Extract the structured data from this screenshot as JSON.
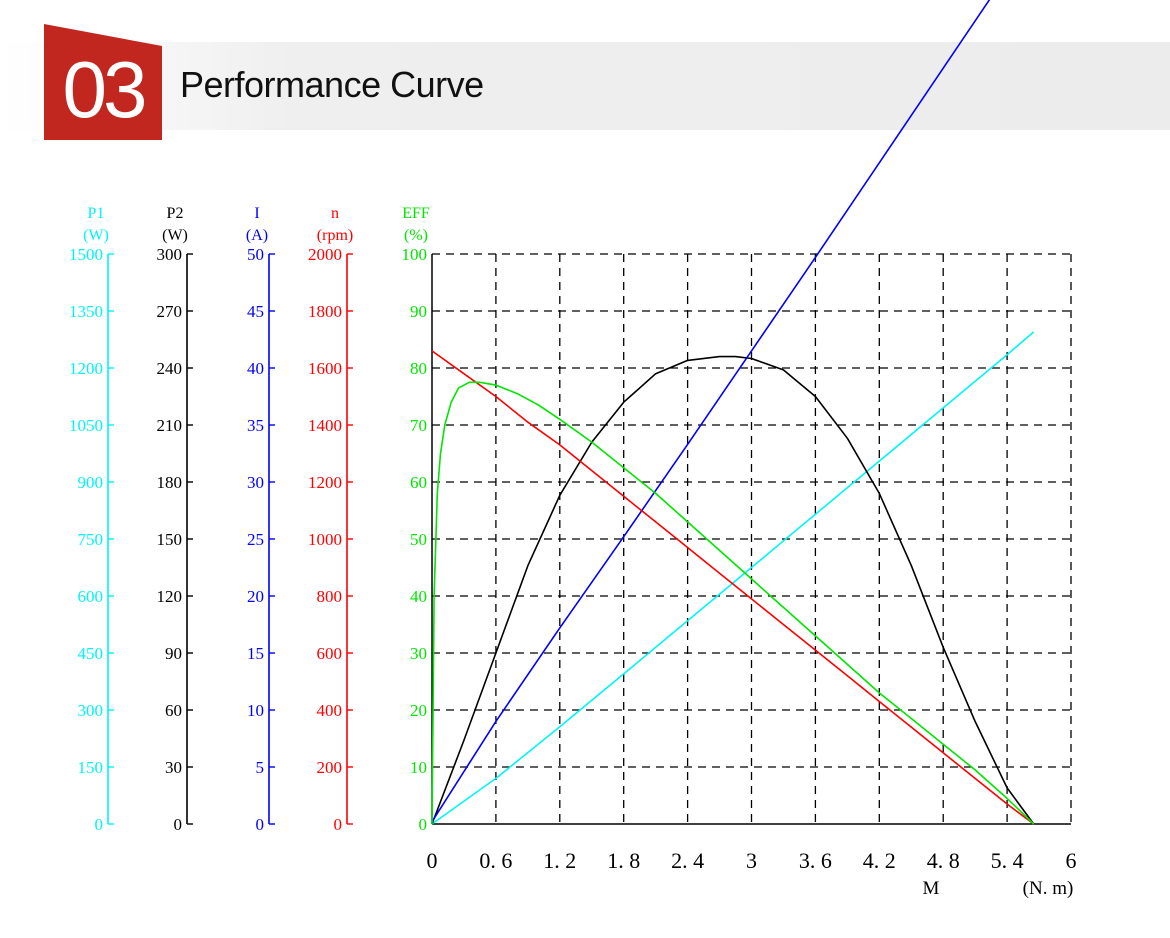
{
  "header": {
    "number": "03",
    "title": "Performance Curve"
  },
  "colors": {
    "badge": "#c1271e",
    "p1": "#00f5f5",
    "p2": "#000000",
    "i": "#0000ff",
    "n": "#ff0000",
    "eff": "#00e600",
    "grid": "#000000"
  },
  "chart_data": {
    "type": "line",
    "x_axis": {
      "ticks": [
        "0",
        "0. 6",
        "1. 2",
        "1. 8",
        "2. 4",
        "3",
        "3. 6",
        "4. 2",
        "4. 8",
        "5. 4",
        "6"
      ],
      "label": "M",
      "unit": "(N. m)",
      "range": [
        0,
        6
      ]
    },
    "y_axes": [
      {
        "key": "p1",
        "name": "P1",
        "unit": "(W)",
        "ticks": [
          "1500",
          "1350",
          "1200",
          "1050",
          "900",
          "750",
          "600",
          "450",
          "300",
          "150",
          "0"
        ]
      },
      {
        "key": "p2",
        "name": "P2",
        "unit": "(W)",
        "ticks": [
          "300",
          "270",
          "240",
          "210",
          "180",
          "150",
          "120",
          "90",
          "60",
          "30",
          "0"
        ]
      },
      {
        "key": "i",
        "name": "I",
        "unit": "(A)",
        "ticks": [
          "50",
          "45",
          "40",
          "35",
          "30",
          "25",
          "20",
          "15",
          "10",
          "5",
          "0"
        ]
      },
      {
        "key": "n",
        "name": "n",
        "unit": "(rpm)",
        "ticks": [
          "2000",
          "1800",
          "1600",
          "1400",
          "1200",
          "1000",
          "800",
          "600",
          "400",
          "200",
          "0"
        ]
      },
      {
        "key": "eff",
        "name": "EFF",
        "unit": "(%)",
        "ticks": [
          "100",
          "90",
          "80",
          "70",
          "60",
          "50",
          "40",
          "30",
          "20",
          "10",
          "0"
        ]
      }
    ],
    "grid": true,
    "series": [
      {
        "name": "P1",
        "unit": "W",
        "range": [
          0,
          1500
        ],
        "x": [
          0,
          0.6,
          1.2,
          1.8,
          2.4,
          3.0,
          3.6,
          4.2,
          4.8,
          5.4,
          5.65
        ],
        "y": [
          0,
          120,
          256,
          395,
          535,
          675,
          815,
          955,
          1095,
          1235,
          1295
        ]
      },
      {
        "name": "P2",
        "unit": "W",
        "range": [
          0,
          300
        ],
        "x": [
          0,
          0.3,
          0.6,
          0.9,
          1.2,
          1.5,
          1.8,
          2.1,
          2.4,
          2.7,
          2.85,
          3.0,
          3.3,
          3.6,
          3.9,
          4.2,
          4.5,
          4.8,
          5.1,
          5.4,
          5.65
        ],
        "y": [
          0,
          44,
          90,
          136,
          173,
          201,
          222,
          237,
          244,
          246,
          246,
          245,
          239,
          225,
          203,
          174,
          136,
          93,
          54,
          19,
          0
        ]
      },
      {
        "name": "I",
        "unit": "A",
        "range": [
          0,
          50
        ],
        "x": [
          0,
          0.6,
          1.2,
          1.8,
          2.4,
          3.0,
          3.6,
          4.2,
          4.8,
          5.4,
          5.65
        ],
        "y": [
          0.2,
          9,
          17.2,
          25.2,
          33.3,
          41.5,
          49.7,
          58,
          66.3,
          74.6,
          77.6
        ]
      },
      {
        "name": "n",
        "unit": "rpm",
        "range": [
          0,
          2000
        ],
        "x": [
          0,
          0.3,
          0.6,
          0.9,
          1.2,
          1.5,
          1.8,
          2.1,
          2.4,
          2.7,
          3.0,
          3.3,
          3.6,
          3.9,
          4.2,
          4.5,
          4.8,
          5.1,
          5.4,
          5.65
        ],
        "y": [
          1660,
          1580,
          1500,
          1410,
          1330,
          1240,
          1150,
          1060,
          970,
          880,
          790,
          700,
          610,
          520,
          430,
          340,
          250,
          160,
          70,
          0
        ]
      },
      {
        "name": "EFF",
        "unit": "%",
        "range": [
          0,
          100
        ],
        "x": [
          0,
          0.02,
          0.05,
          0.08,
          0.12,
          0.18,
          0.25,
          0.35,
          0.45,
          0.6,
          0.8,
          1.0,
          1.2,
          1.5,
          1.8,
          2.1,
          2.4,
          2.7,
          3.0,
          3.3,
          3.6,
          3.9,
          4.2,
          4.5,
          4.8,
          5.1,
          5.4,
          5.65
        ],
        "y": [
          0,
          40,
          58,
          65,
          70,
          74,
          76.5,
          77.5,
          77.5,
          77,
          75.5,
          73.5,
          71,
          67,
          62.5,
          58,
          53,
          48,
          43,
          38,
          33,
          28,
          23,
          18.5,
          14,
          9.5,
          4.5,
          0
        ]
      }
    ]
  }
}
